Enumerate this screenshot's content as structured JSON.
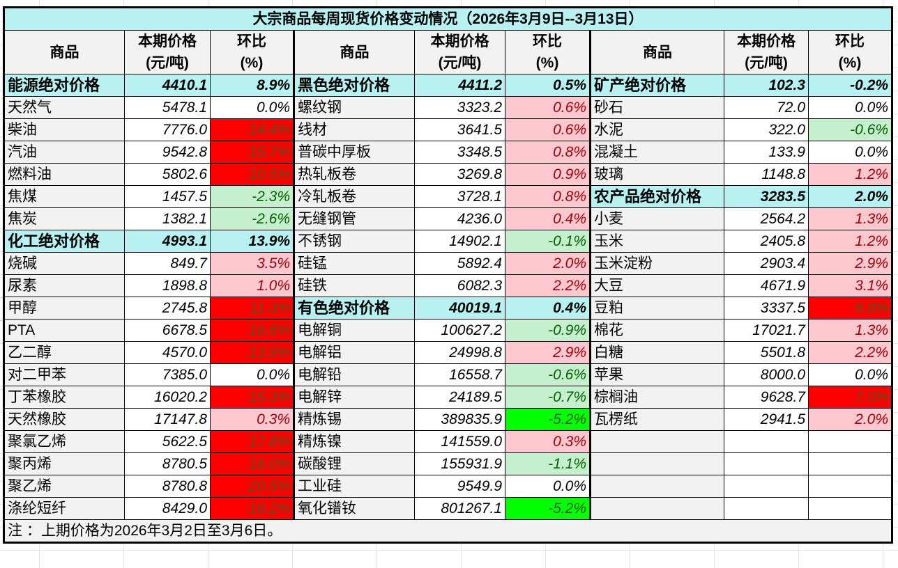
{
  "title": "大宗商品每周现货价格变动情况（2026年3月9日--3月13日）",
  "headers": {
    "name": "商品",
    "price_line1": "本期价格",
    "price_line2": "(元/吨)",
    "pct_line1": "环比",
    "pct_line2": "(%)"
  },
  "columns": [
    {
      "rows": [
        {
          "name": "能源绝对价格",
          "price": "4410.1",
          "pct": "8.9%",
          "type": "group",
          "tone": "group"
        },
        {
          "name": "天然气",
          "price": "5478.1",
          "pct": "0.0%",
          "tone": "flat"
        },
        {
          "name": "柴油",
          "price": "7776.0",
          "pct": "14.4%",
          "tone": "up-strong"
        },
        {
          "name": "汽油",
          "price": "9542.8",
          "pct": "15.7%",
          "tone": "up-strong"
        },
        {
          "name": "燃料油",
          "price": "5802.6",
          "pct": "10.5%",
          "tone": "up-strong"
        },
        {
          "name": "焦煤",
          "price": "1457.5",
          "pct": "-2.3%",
          "tone": "down-lite"
        },
        {
          "name": "焦炭",
          "price": "1382.1",
          "pct": "-2.6%",
          "tone": "down-lite"
        },
        {
          "name": "化工绝对价格",
          "price": "4993.1",
          "pct": "13.9%",
          "type": "group",
          "tone": "group"
        },
        {
          "name": "烧碱",
          "price": "849.7",
          "pct": "3.5%",
          "tone": "up-lite"
        },
        {
          "name": "尿素",
          "price": "1898.8",
          "pct": "1.0%",
          "tone": "up-lite"
        },
        {
          "name": "甲醇",
          "price": "2745.8",
          "pct": "11.3%",
          "tone": "up-strong"
        },
        {
          "name": "PTA",
          "price": "6678.5",
          "pct": "18.6%",
          "tone": "up-strong"
        },
        {
          "name": "乙二醇",
          "price": "4570.0",
          "pct": "13.9%",
          "tone": "up-strong"
        },
        {
          "name": "对二甲苯",
          "price": "7385.0",
          "pct": "0.0%",
          "tone": "flat"
        },
        {
          "name": "丁苯橡胶",
          "price": "16020.2",
          "pct": "15.3%",
          "tone": "up-strong"
        },
        {
          "name": "天然橡胶",
          "price": "17147.8",
          "pct": "0.3%",
          "tone": "up-lite"
        },
        {
          "name": "聚氯乙烯",
          "price": "5622.5",
          "pct": "17.8%",
          "tone": "up-strong"
        },
        {
          "name": "聚丙烯",
          "price": "8780.5",
          "pct": "18.0%",
          "tone": "up-strong"
        },
        {
          "name": "聚乙烯",
          "price": "8780.8",
          "pct": "20.5%",
          "tone": "up-strong"
        },
        {
          "name": "涤纶短纤",
          "price": "8429.0",
          "pct": "18.2%",
          "tone": "up-strong"
        }
      ]
    },
    {
      "rows": [
        {
          "name": "黑色绝对价格",
          "price": "4411.2",
          "pct": "0.5%",
          "type": "group",
          "tone": "group"
        },
        {
          "name": "螺纹钢",
          "price": "3323.2",
          "pct": "0.6%",
          "tone": "up-lite"
        },
        {
          "name": "线材",
          "price": "3641.5",
          "pct": "0.6%",
          "tone": "up-lite"
        },
        {
          "name": "普碳中厚板",
          "price": "3348.5",
          "pct": "0.8%",
          "tone": "up-lite"
        },
        {
          "name": "热轧板卷",
          "price": "3269.8",
          "pct": "0.9%",
          "tone": "up-lite"
        },
        {
          "name": "冷轧板卷",
          "price": "3728.1",
          "pct": "0.8%",
          "tone": "up-lite"
        },
        {
          "name": "无缝钢管",
          "price": "4236.0",
          "pct": "0.4%",
          "tone": "up-lite"
        },
        {
          "name": "不锈钢",
          "price": "14902.1",
          "pct": "-0.1%",
          "tone": "down-lite"
        },
        {
          "name": "硅锰",
          "price": "5892.4",
          "pct": "2.0%",
          "tone": "up-lite"
        },
        {
          "name": "硅铁",
          "price": "6082.3",
          "pct": "2.2%",
          "tone": "up-lite"
        },
        {
          "name": "有色绝对价格",
          "price": "40019.1",
          "pct": "0.4%",
          "type": "group",
          "tone": "group"
        },
        {
          "name": "电解铜",
          "price": "100627.2",
          "pct": "-0.9%",
          "tone": "down-lite"
        },
        {
          "name": "电解铝",
          "price": "24998.8",
          "pct": "2.9%",
          "tone": "up-lite"
        },
        {
          "name": "电解铅",
          "price": "16558.7",
          "pct": "-0.6%",
          "tone": "down-lite"
        },
        {
          "name": "电解锌",
          "price": "24189.5",
          "pct": "-0.7%",
          "tone": "down-lite"
        },
        {
          "name": "精炼锡",
          "price": "389835.9",
          "pct": "-5.2%",
          "tone": "down-strong"
        },
        {
          "name": "精炼镍",
          "price": "141559.0",
          "pct": "0.3%",
          "tone": "up-lite"
        },
        {
          "name": "碳酸锂",
          "price": "155931.9",
          "pct": "-1.1%",
          "tone": "down-lite"
        },
        {
          "name": "工业硅",
          "price": "9549.9",
          "pct": "0.0%",
          "tone": "flat"
        },
        {
          "name": "氧化镨钕",
          "price": "801267.1",
          "pct": "-5.2%",
          "tone": "down-strong"
        }
      ]
    },
    {
      "rows": [
        {
          "name": "矿产绝对价格",
          "price": "102.3",
          "pct": "-0.2%",
          "type": "group",
          "tone": "group"
        },
        {
          "name": "砂石",
          "price": "72.0",
          "pct": "0.0%",
          "tone": "flat"
        },
        {
          "name": "水泥",
          "price": "322.0",
          "pct": "-0.6%",
          "tone": "down-lite"
        },
        {
          "name": "混凝土",
          "price": "133.9",
          "pct": "0.0%",
          "tone": "flat"
        },
        {
          "name": "玻璃",
          "price": "1148.8",
          "pct": "1.2%",
          "tone": "up-lite"
        },
        {
          "name": "农产品绝对价格",
          "price": "3283.5",
          "pct": "2.0%",
          "type": "group",
          "tone": "group"
        },
        {
          "name": "小麦",
          "price": "2564.2",
          "pct": "1.3%",
          "tone": "up-lite"
        },
        {
          "name": "玉米",
          "price": "2405.8",
          "pct": "1.2%",
          "tone": "up-lite"
        },
        {
          "name": "玉米淀粉",
          "price": "2903.4",
          "pct": "2.9%",
          "tone": "up-lite"
        },
        {
          "name": "大豆",
          "price": "4671.9",
          "pct": "3.1%",
          "tone": "up-lite"
        },
        {
          "name": "豆粕",
          "price": "3337.5",
          "pct": "6.8%",
          "tone": "up-strong"
        },
        {
          "name": "棉花",
          "price": "17021.7",
          "pct": "1.3%",
          "tone": "up-lite"
        },
        {
          "name": "白糖",
          "price": "5501.8",
          "pct": "2.2%",
          "tone": "up-lite"
        },
        {
          "name": "苹果",
          "price": "8000.0",
          "pct": "0.0%",
          "tone": "flat"
        },
        {
          "name": "棕榈油",
          "price": "9628.7",
          "pct": "7.0%",
          "tone": "up-strong"
        },
        {
          "name": "瓦楞纸",
          "price": "2941.5",
          "pct": "2.0%",
          "tone": "up-lite"
        },
        {
          "name": "",
          "price": "",
          "pct": "",
          "tone": "blank"
        },
        {
          "name": "",
          "price": "",
          "pct": "",
          "tone": "blank"
        },
        {
          "name": "",
          "price": "",
          "pct": "",
          "tone": "blank"
        },
        {
          "name": "",
          "price": "",
          "pct": "",
          "tone": "blank"
        }
      ]
    }
  ],
  "note": "注 ：上期价格为2026年3月2日至3月6日。",
  "colors": {
    "group_bg": "#b7f1f1",
    "header_bg": "#f2f2f2",
    "up_lite_bg": "#ffc7ce",
    "up_lite_text": "#9c0006",
    "up_strong_bg": "#ff0000",
    "down_lite_bg": "#c6efce",
    "down_lite_text": "#006100",
    "down_strong_bg": "#00ff00"
  }
}
